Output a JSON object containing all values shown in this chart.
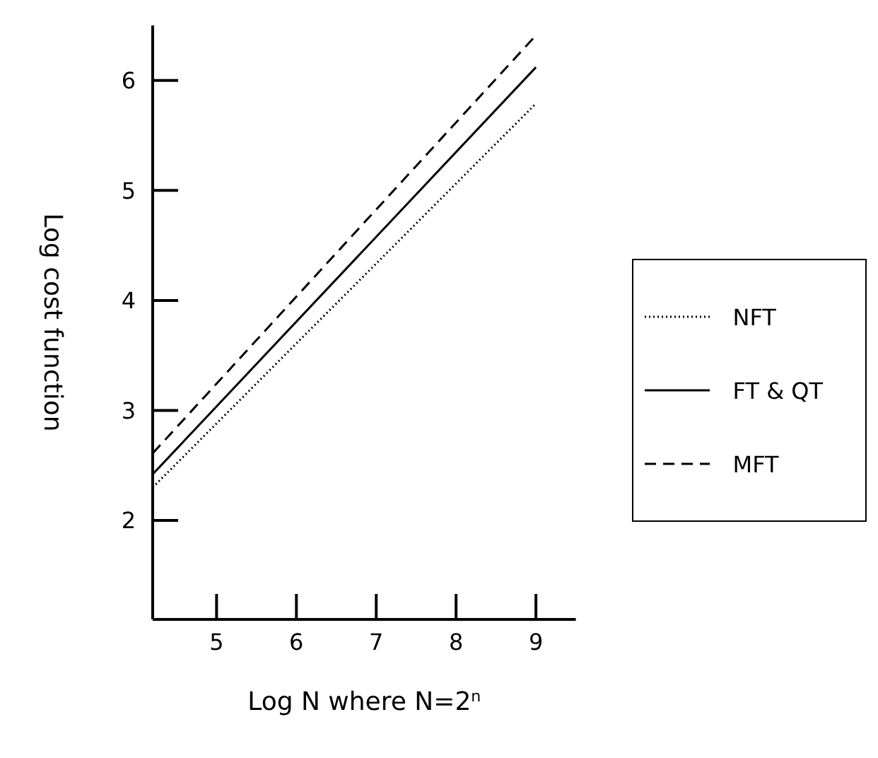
{
  "chart_data": {
    "type": "line",
    "xlabel": "Log N where N=2$^{n}$",
    "ylabel": "Log cost function",
    "xlim": [
      4.2,
      9.5
    ],
    "xticks": [
      5,
      6,
      7,
      8,
      9
    ],
    "ylim": [
      1.1,
      6.5
    ],
    "yticks": [
      2,
      3,
      4,
      5,
      6
    ],
    "grid": false,
    "legend": "right",
    "marker": "none",
    "x": [
      4.2,
      9
    ],
    "series": [
      {
        "name": "NFT",
        "color": "#000000",
        "line_style": "dotted",
        "values": [
          2.3,
          5.79
        ]
      },
      {
        "name": "FT & QT",
        "color": "#000000",
        "line_style": "solid",
        "values": [
          2.42,
          6.12
        ]
      },
      {
        "name": "MFT",
        "color": "#000000",
        "line_style": "dashed",
        "values": [
          2.61,
          6.41
        ]
      }
    ]
  }
}
